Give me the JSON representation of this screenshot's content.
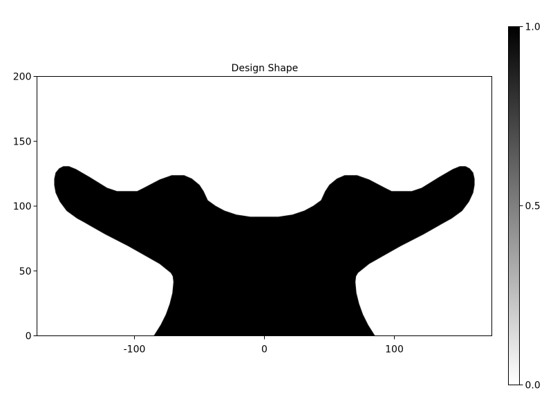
{
  "chart_data": {
    "type": "heatmap",
    "title": "Design Shape",
    "xlabel": "",
    "ylabel": "",
    "xlim": [
      -175,
      175
    ],
    "ylim": [
      0,
      200
    ],
    "x_ticks": [
      {
        "value": -100,
        "label": "-100"
      },
      {
        "value": 0,
        "label": "0"
      },
      {
        "value": 100,
        "label": "100"
      }
    ],
    "y_ticks": [
      {
        "value": 0,
        "label": "0"
      },
      {
        "value": 50,
        "label": "50"
      },
      {
        "value": 100,
        "label": "100"
      },
      {
        "value": 150,
        "label": "150"
      },
      {
        "value": 200,
        "label": "200"
      }
    ],
    "grid": false,
    "colormap": {
      "low_color": "#ffffff",
      "high_color": "#000000"
    },
    "colorbar": {
      "range": [
        0.0,
        1.0
      ],
      "ticks": [
        {
          "value": 0.0,
          "label": "0.0"
        },
        {
          "value": 0.5,
          "label": "0.5"
        },
        {
          "value": 1.0,
          "label": "1.0"
        }
      ]
    },
    "shape_fill_value": 1.0,
    "shape_outline": [
      [
        -84.9,
        0
      ],
      [
        -79.6,
        8.5
      ],
      [
        -75.6,
        16.5
      ],
      [
        -72.7,
        24.5
      ],
      [
        -70.6,
        33
      ],
      [
        -69.8,
        41.5
      ],
      [
        -70.3,
        46
      ],
      [
        -71.9,
        48.7
      ],
      [
        -80.4,
        55.6
      ],
      [
        -96.3,
        64.6
      ],
      [
        -104.8,
        69.4
      ],
      [
        -122.3,
        78.4
      ],
      [
        -139.2,
        88
      ],
      [
        -144.0,
        90.6
      ],
      [
        -152.0,
        96.5
      ],
      [
        -157.3,
        103.5
      ],
      [
        -160.5,
        110.4
      ],
      [
        -161.5,
        116.2
      ],
      [
        -161.5,
        121
      ],
      [
        -160.5,
        125.7
      ],
      [
        -157.8,
        128.9
      ],
      [
        -154.7,
        130.5
      ],
      [
        -150.4,
        130.5
      ],
      [
        -145.1,
        128.4
      ],
      [
        -135.0,
        122.5
      ],
      [
        -121.2,
        114
      ],
      [
        -113.3,
        111.3
      ],
      [
        -97.9,
        111.3
      ],
      [
        -92.6,
        114
      ],
      [
        -80.4,
        120.4
      ],
      [
        -71.3,
        123.6
      ],
      [
        -61.8,
        123.6
      ],
      [
        -55.9,
        121
      ],
      [
        -50.1,
        116.2
      ],
      [
        -46.9,
        111.3
      ],
      [
        -43.7,
        104.4
      ],
      [
        -37.8,
        100.1
      ],
      [
        -30.9,
        96.4
      ],
      [
        -21.4,
        93.2
      ],
      [
        -10.8,
        91.6
      ],
      [
        0,
        91.6
      ]
    ]
  }
}
